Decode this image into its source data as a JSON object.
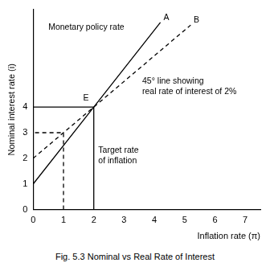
{
  "chart_data": {
    "type": "line",
    "caption": "Fig. 5.3 Nominal vs Real Rate of Interest",
    "x_label": "Inflation rate (π)",
    "y_label": "Nominal interest rate (i)",
    "xlim": [
      0,
      7.5
    ],
    "xticks": [
      0,
      1,
      2,
      3,
      4,
      5,
      6,
      7
    ],
    "ylim": [
      0,
      7.8
    ],
    "yticks": [
      0,
      1,
      2,
      3,
      4
    ],
    "grid": false,
    "series": [
      {
        "color": "#000000",
        "line_style": "solid",
        "x": [
          0,
          2,
          4.2
        ],
        "y": [
          1,
          4,
          7.3
        ]
      },
      {
        "color": "#000000",
        "line_style": "dashed",
        "x": [
          0,
          2,
          5.2
        ],
        "y": [
          2,
          4,
          7.2
        ]
      },
      {
        "color": "#000000",
        "line_style": "solid",
        "x": [
          2,
          2
        ],
        "y": [
          0,
          4
        ]
      },
      {
        "color": "#000000",
        "line_style": "solid",
        "x": [
          0,
          2
        ],
        "y": [
          4,
          4
        ]
      },
      {
        "color": "#000000",
        "line_style": "dashed",
        "x": [
          1,
          1,
          0
        ],
        "y": [
          0,
          3,
          3
        ]
      }
    ],
    "annotations": [
      {
        "lines": [
          "A"
        ],
        "x": 4.3,
        "y": 7.4
      },
      {
        "lines": [
          "B"
        ],
        "x": 5.3,
        "y": 7.3
      },
      {
        "lines": [
          "E"
        ],
        "x": 1.65,
        "y": 4.25
      },
      {
        "lines": [
          "Monetary policy rate"
        ],
        "x": 0.5,
        "y": 7.0
      },
      {
        "lines": [
          "45° line showing",
          "real rate of interest of 2%"
        ],
        "x": 3.6,
        "y": 4.9
      },
      {
        "lines": [
          "Target rate",
          "of inflation"
        ],
        "x": 2.15,
        "y": 2.2
      }
    ]
  }
}
